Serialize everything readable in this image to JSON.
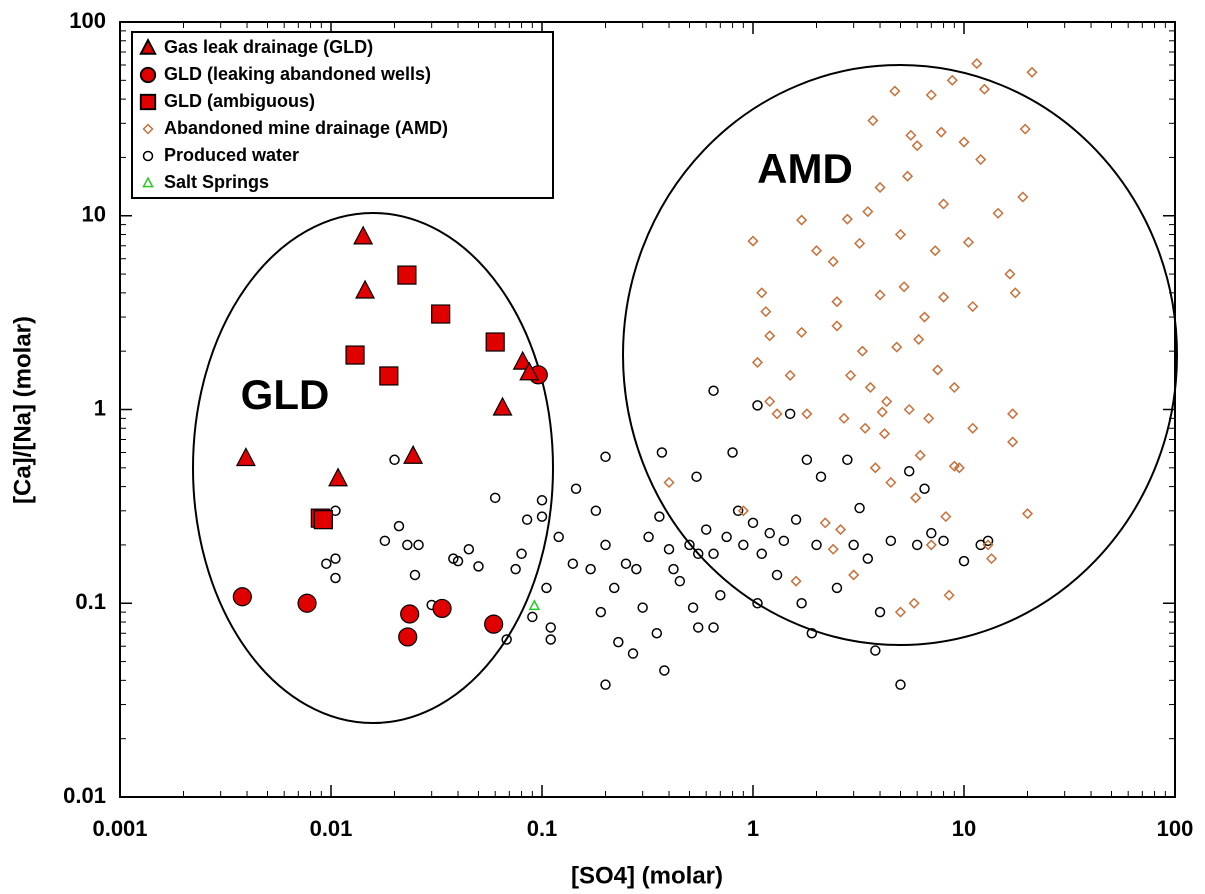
{
  "chart_data": {
    "type": "scatter",
    "xlabel": "[SO4] (molar)",
    "ylabel": "[Ca]/[Na] (molar)",
    "xscale": "log",
    "yscale": "log",
    "xlim": [
      0.001,
      100
    ],
    "ylim": [
      0.01,
      100
    ],
    "xticks": [
      0.001,
      0.01,
      0.1,
      1,
      10,
      100
    ],
    "yticks": [
      0.01,
      0.1,
      1,
      10,
      100
    ],
    "legend": "upper left",
    "annotations": [
      "GLD",
      "AMD"
    ],
    "series": [
      {
        "name": "Gas leak drainage (GLD)",
        "color": "#e00000",
        "marker": "triangle",
        "filled": true,
        "x": [
          0.0142,
          0.0145,
          0.00395,
          0.0108,
          0.0245,
          0.081,
          0.065,
          0.087
        ],
        "values": [
          7.8,
          4.1,
          0.56,
          0.44,
          0.575,
          1.76,
          1.02,
          1.55
        ]
      },
      {
        "name": "GLD (leaking abandoned wells)",
        "color": "#e00000",
        "marker": "circle",
        "filled": true,
        "x": [
          0.0038,
          0.0077,
          0.0236,
          0.0231,
          0.0336,
          0.059,
          0.096
        ],
        "values": [
          0.108,
          0.1,
          0.088,
          0.067,
          0.094,
          0.078,
          1.51
        ]
      },
      {
        "name": "GLD (ambiguous)",
        "color": "#e00000",
        "marker": "square",
        "filled": true,
        "x": [
          0.0229,
          0.0331,
          0.013,
          0.0188,
          0.06,
          0.0089,
          0.0092
        ],
        "values": [
          4.94,
          3.11,
          1.91,
          1.49,
          2.23,
          0.275,
          0.27
        ]
      },
      {
        "name": "Abandoned mine drainage (AMD)",
        "color": "#c8703a",
        "marker": "diamond",
        "filled": false,
        "x": [
          0.4,
          0.9,
          1,
          1.05,
          1.1,
          1.15,
          1.2,
          1.2,
          1.3,
          1.5,
          1.6,
          1.7,
          1.7,
          1.8,
          2,
          2.2,
          2.4,
          2.5,
          2.5,
          2.7,
          2.8,
          2.9,
          3,
          3.2,
          3.3,
          3.5,
          3.6,
          3.7,
          3.8,
          4,
          4,
          4.1,
          4.3,
          4.5,
          4.7,
          4.8,
          5,
          5,
          5.2,
          5.4,
          5.5,
          5.6,
          5.8,
          5.9,
          6,
          6.1,
          6.2,
          6.5,
          7,
          7,
          7.3,
          7.5,
          7.8,
          8,
          8,
          8.2,
          8.5,
          8.8,
          9,
          9,
          10,
          10.5,
          11,
          11,
          11.5,
          12,
          12.5,
          13,
          13.5,
          14.5,
          16.5,
          17,
          17,
          17.5,
          19,
          19.5,
          20,
          21,
          9.5,
          6.8,
          4.2,
          3.4,
          2.6,
          2.4
        ],
        "values": [
          0.42,
          0.3,
          7.4,
          1.75,
          4,
          3.2,
          2.4,
          1.1,
          0.95,
          1.5,
          0.13,
          9.5,
          2.5,
          0.95,
          6.6,
          0.26,
          5.8,
          2.7,
          3.6,
          0.9,
          9.6,
          1.5,
          0.14,
          7.2,
          2,
          10.5,
          1.3,
          31,
          0.5,
          3.9,
          14,
          0.97,
          1.1,
          0.42,
          44,
          2.1,
          8,
          0.09,
          4.3,
          16,
          1,
          26,
          0.1,
          0.35,
          23,
          2.3,
          0.58,
          3,
          42,
          0.2,
          6.6,
          1.6,
          27,
          11.5,
          3.8,
          0.28,
          0.11,
          50,
          1.3,
          0.51,
          24,
          7.3,
          3.4,
          0.8,
          61,
          19.5,
          45,
          0.2,
          0.17,
          10.3,
          5,
          0.95,
          0.68,
          4,
          12.5,
          28,
          0.29,
          55,
          0.5,
          0.9,
          0.75,
          0.8,
          0.24,
          0.19
        ]
      },
      {
        "name": "Produced water",
        "color": "#000000",
        "marker": "circle",
        "filled": false,
        "x": [
          0.0095,
          0.0105,
          0.0105,
          0.0105,
          0.018,
          0.02,
          0.021,
          0.023,
          0.025,
          0.026,
          0.03,
          0.038,
          0.04,
          0.045,
          0.05,
          0.06,
          0.068,
          0.075,
          0.08,
          0.085,
          0.09,
          0.1,
          0.1,
          0.105,
          0.11,
          0.11,
          0.12,
          0.14,
          0.145,
          0.17,
          0.18,
          0.19,
          0.2,
          0.2,
          0.2,
          0.22,
          0.23,
          0.25,
          0.27,
          0.28,
          0.3,
          0.32,
          0.35,
          0.36,
          0.37,
          0.38,
          0.4,
          0.42,
          0.45,
          0.5,
          0.52,
          0.54,
          0.55,
          0.55,
          0.6,
          0.65,
          0.65,
          0.65,
          0.7,
          0.75,
          0.8,
          0.85,
          0.9,
          1,
          1.05,
          1.05,
          1.1,
          1.2,
          1.3,
          1.4,
          1.5,
          1.6,
          1.7,
          1.8,
          1.9,
          2,
          2.1,
          2.5,
          2.8,
          3,
          3.2,
          3.5,
          3.8,
          4,
          4.5,
          5,
          5.5,
          6,
          6.5,
          7,
          8,
          10,
          12,
          13
        ],
        "values": [
          0.16,
          0.17,
          0.135,
          0.3,
          0.21,
          0.55,
          0.25,
          0.2,
          0.14,
          0.2,
          0.098,
          0.17,
          0.165,
          0.19,
          0.155,
          0.35,
          0.065,
          0.15,
          0.18,
          0.27,
          0.085,
          0.34,
          0.28,
          0.12,
          0.075,
          0.065,
          0.22,
          0.16,
          0.39,
          0.15,
          0.3,
          0.09,
          0.57,
          0.038,
          0.2,
          0.12,
          0.063,
          0.16,
          0.055,
          0.15,
          0.095,
          0.22,
          0.07,
          0.28,
          0.6,
          0.045,
          0.19,
          0.15,
          0.13,
          0.2,
          0.095,
          0.45,
          0.075,
          0.18,
          0.24,
          0.075,
          0.18,
          1.25,
          0.11,
          0.22,
          0.6,
          0.3,
          0.2,
          0.26,
          1.05,
          0.1,
          0.18,
          0.23,
          0.14,
          0.21,
          0.95,
          0.27,
          0.1,
          0.55,
          0.07,
          0.2,
          0.45,
          0.12,
          0.55,
          0.2,
          0.31,
          0.17,
          0.057,
          0.09,
          0.21,
          0.038,
          0.48,
          0.2,
          0.39,
          0.23,
          0.21,
          0.165,
          0.2,
          0.21
        ]
      },
      {
        "name": "Salt Springs",
        "color": "#22cc22",
        "marker": "triangle",
        "filled": false,
        "x": [
          0.092
        ],
        "values": [
          0.097
        ]
      }
    ]
  }
}
